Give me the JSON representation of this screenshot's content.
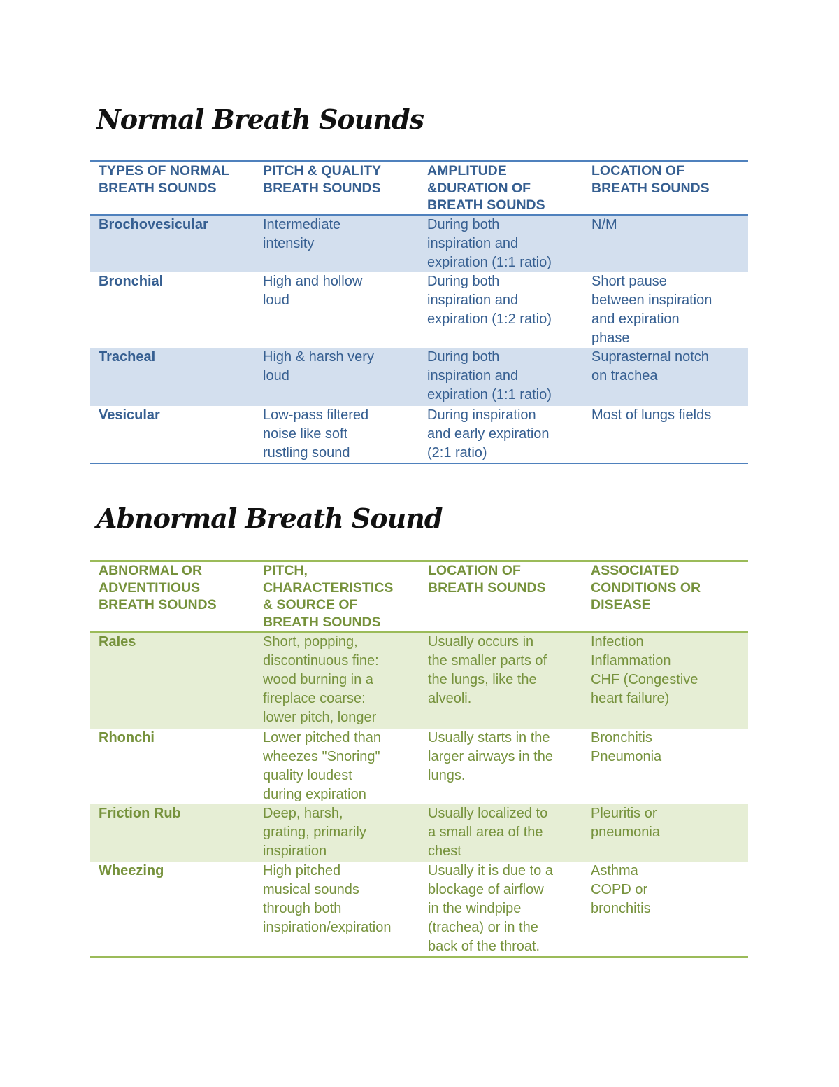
{
  "normal": {
    "title": "Normal Breath Sounds",
    "headers": [
      "TYPES OF NORMAL\nBREATH SOUNDS",
      "PITCH & QUALITY\nBREATH SOUNDS",
      "AMPLITUDE\n&DURATION OF\nBREATH SOUNDS",
      "LOCATION OF\nBREATH SOUNDS"
    ],
    "rows": [
      [
        "Brochovesicular",
        "Intermediate\nintensity",
        "During both\ninspiration and\nexpiration (1:1 ratio)",
        "N/M"
      ],
      [
        "Bronchial",
        "High and hollow\nloud",
        "During both\ninspiration and\nexpiration (1:2 ratio)",
        "Short pause\nbetween inspiration\nand expiration\nphase"
      ],
      [
        "Tracheal",
        "High & harsh very\nloud",
        "During both\ninspiration and\nexpiration (1:1 ratio)",
        "Suprasternal notch\non trachea"
      ],
      [
        "Vesicular",
        "Low-pass filtered\nnoise like soft\nrustling sound",
        "During inspiration\nand early expiration\n(2:1 ratio)",
        "Most of lungs fields"
      ]
    ]
  },
  "abnormal": {
    "title": "Abnormal Breath Sound",
    "headers": [
      "ABNORMAL OR\nADVENTITIOUS\nBREATH SOUNDS",
      "PITCH,\nCHARACTERISTICS\n& SOURCE OF\nBREATH SOUNDS",
      "LOCATION OF\nBREATH SOUNDS",
      "ASSOCIATED\nCONDITIONS OR\nDISEASE"
    ],
    "rows": [
      [
        "Rales",
        "Short, popping,\ndiscontinuous fine:\nwood burning in a\nfireplace coarse:\nlower pitch, longer",
        "Usually occurs in\nthe smaller parts of\nthe lungs, like the\nalveoli.",
        "Infection\nInflammation\nCHF (Congestive\nheart failure)"
      ],
      [
        "Rhonchi",
        "Lower pitched than\nwheezes \"Snoring\"\nquality loudest\nduring expiration",
        "Usually starts in the\nlarger airways in the\nlungs.",
        "Bronchitis\nPneumonia"
      ],
      [
        "Friction Rub",
        "Deep, harsh,\ngrating, primarily\ninspiration",
        "Usually localized to\na small area of the\nchest",
        "Pleuritis or\npneumonia"
      ],
      [
        "Wheezing",
        "High pitched\nmusical sounds\nthrough both\ninspiration/expiration",
        "Usually it is due to a\nblockage of airflow\nin the windpipe\n(trachea) or in the\nback of the throat.",
        "Asthma\nCOPD or\nbronchitis"
      ]
    ]
  },
  "colors": {
    "normal_text": "#365f91",
    "normal_band": "#d3dfee",
    "normal_rule": "#4f81bd",
    "abnormal_text": "#76923c",
    "abnormal_band": "#e6eed5",
    "abnormal_rule": "#9bbb59"
  }
}
